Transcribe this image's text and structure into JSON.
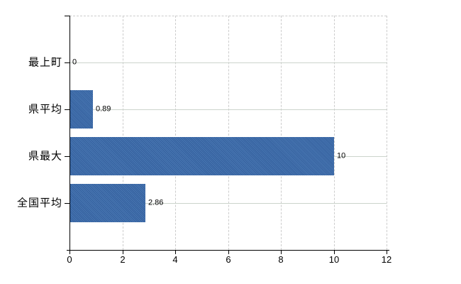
{
  "chart_data": {
    "type": "bar",
    "orientation": "horizontal",
    "title": "",
    "xlabel": "",
    "ylabel": "",
    "categories": [
      "最上町",
      "県平均",
      "県最大",
      "全国平均"
    ],
    "values": [
      0,
      0.89,
      10,
      2.86
    ],
    "value_labels": [
      "0",
      "0.89",
      "10",
      "2.86"
    ],
    "xlim": [
      0,
      12
    ],
    "x_ticks": [
      0,
      2,
      4,
      6,
      8,
      10,
      12
    ],
    "x_tick_labels": [
      "0",
      "2",
      "4",
      "6",
      "8",
      "10",
      "12"
    ],
    "grid": "horizontal solid, vertical dashed",
    "legend": false,
    "colors": {
      "bar_dark": "#335f9d",
      "bar_light": "#4a78b3",
      "h_gridline": "#ccd4cc",
      "v_gridline": "#cccccc",
      "axis": "#000000",
      "text": "#000000",
      "background": "#ffffff"
    }
  }
}
